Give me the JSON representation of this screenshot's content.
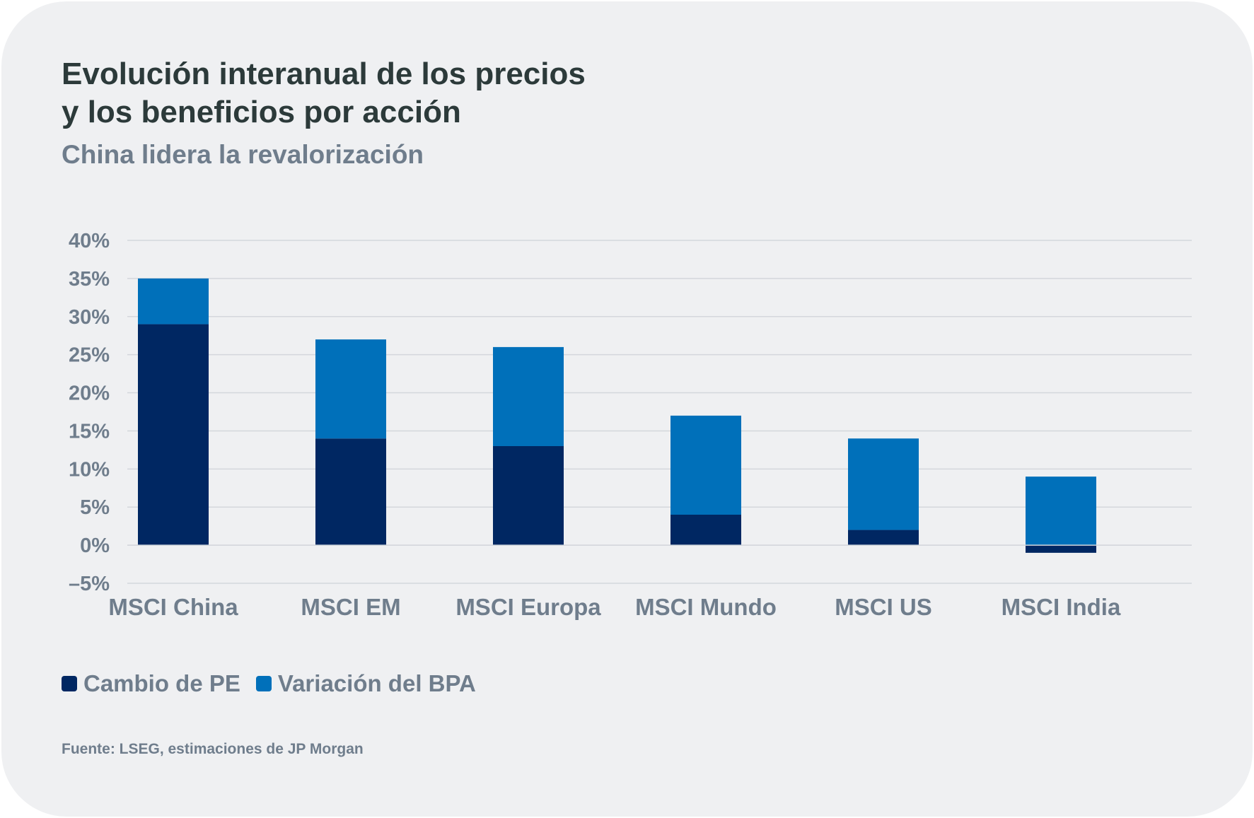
{
  "title_line1": "Evolución interanual de los precios",
  "title_line2": "y los beneficios por acción",
  "subtitle": "China lidera la revalorización",
  "source": "Fuente: LSEG, estimaciones de JP Morgan",
  "colors": {
    "pe": "#002762",
    "bpa": "#0070ba",
    "grid": "#d4d7dc",
    "background": "#eff0f2"
  },
  "chart_data": {
    "type": "bar",
    "stacked": true,
    "categories": [
      "MSCI China",
      "MSCI EM",
      "MSCI Europa",
      "MSCI Mundo",
      "MSCI US",
      "MSCI India"
    ],
    "series": [
      {
        "name": "Cambio de PE",
        "values": [
          29,
          14,
          13,
          4,
          2,
          -1
        ]
      },
      {
        "name": "Variación del BPA",
        "values": [
          6,
          13,
          13,
          13,
          12,
          9
        ]
      }
    ],
    "yticks": [
      "40%",
      "35%",
      "30%",
      "25%",
      "20%",
      "15%",
      "10%",
      "5%",
      "0%",
      "–5%"
    ],
    "ylim": [
      -5,
      40
    ],
    "grid": true,
    "legend_position": "bottom-left"
  }
}
